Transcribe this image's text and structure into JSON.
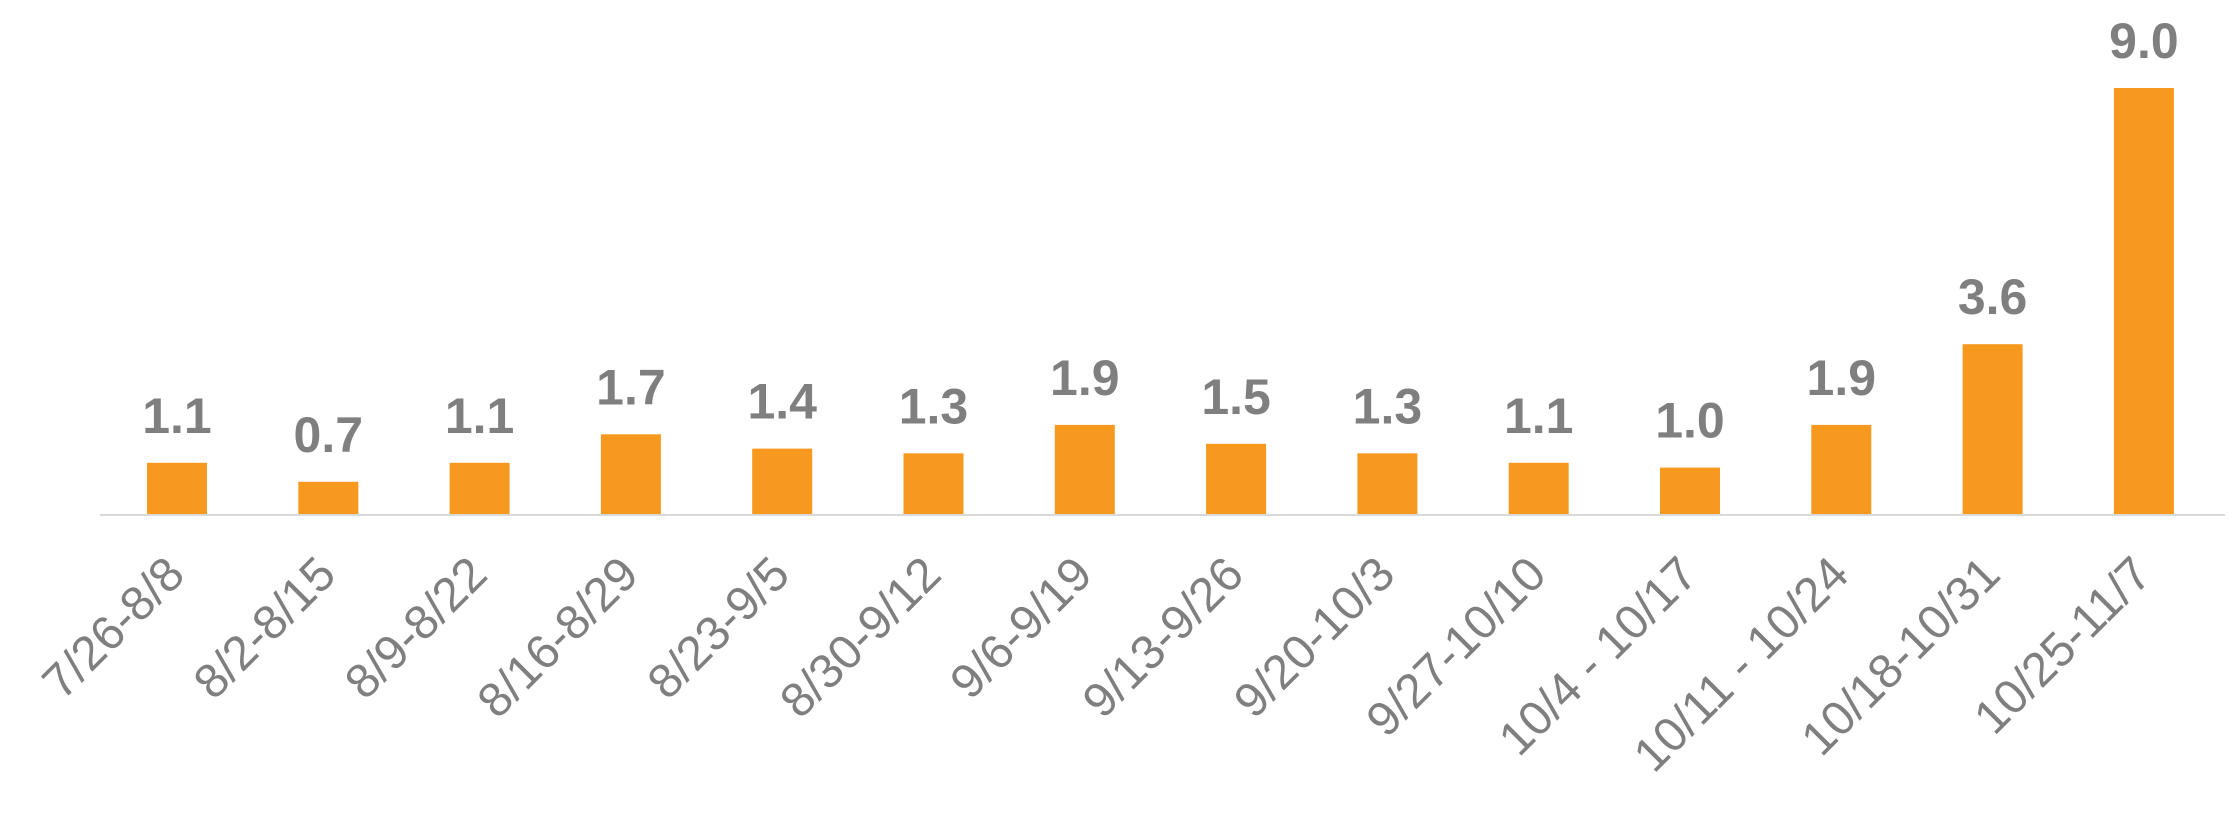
{
  "chart_data": {
    "type": "bar",
    "categories": [
      "7/26-8/8",
      "8/2-8/15",
      "8/9-8/22",
      "8/16-8/29",
      "8/23-9/5",
      "8/30-9/12",
      "9/6-9/19",
      "9/13-9/26",
      "9/20-10/3",
      "9/27-10/10",
      "10/4 - 10/17",
      "10/11 - 10/24",
      "10/18-10/31",
      "10/25-11/7"
    ],
    "values": [
      1.1,
      0.7,
      1.1,
      1.7,
      1.4,
      1.3,
      1.9,
      1.5,
      1.3,
      1.1,
      1.0,
      1.9,
      3.6,
      9.0
    ],
    "data_labels": [
      "1.1",
      "0.7",
      "1.1",
      "1.7",
      "1.4",
      "1.3",
      "1.9",
      "1.5",
      "1.3",
      "1.1",
      "1.0",
      "1.9",
      "3.6",
      "9.0"
    ],
    "title": "",
    "xlabel": "",
    "ylabel": "",
    "ylim": [
      0,
      9.0
    ],
    "grid": false,
    "legend": "none",
    "colors": {
      "bar": "#F7991E",
      "label": "#7F7F7F",
      "axis": "#D9D9D9"
    }
  }
}
